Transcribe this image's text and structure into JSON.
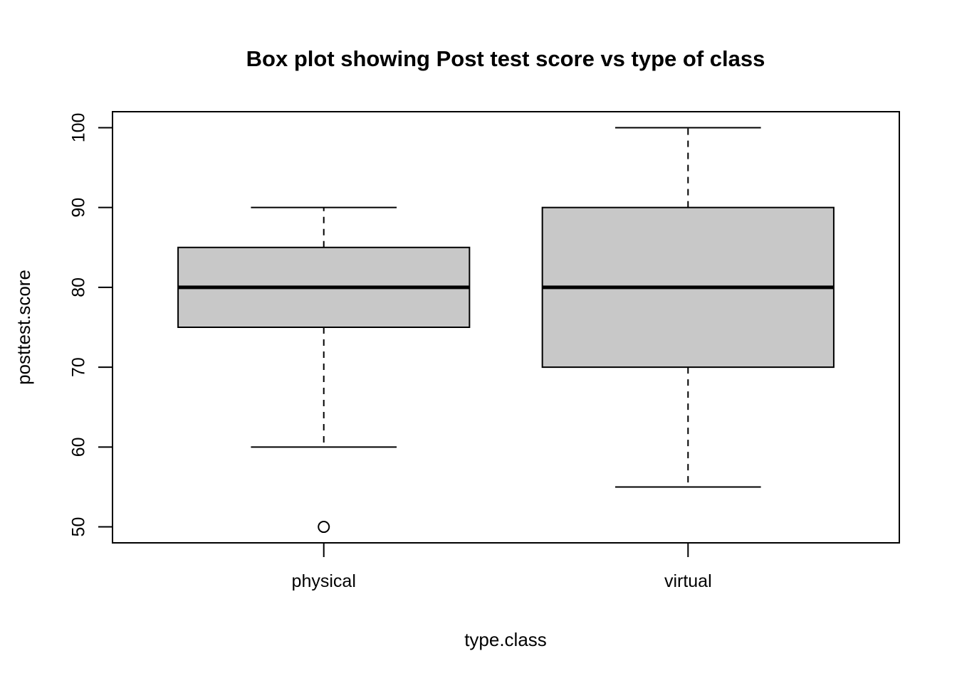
{
  "chart_data": {
    "type": "boxplot",
    "title": "Box plot showing Post test score vs type of class",
    "xlabel": "type.class",
    "ylabel": "posttest.score",
    "categories": [
      "physical",
      "virtual"
    ],
    "y_ticks": [
      50,
      60,
      70,
      80,
      90,
      100
    ],
    "ylim": [
      48,
      102
    ],
    "grid": false,
    "legend": false,
    "series": [
      {
        "name": "physical",
        "lower_whisker": 60,
        "q1": 75,
        "median": 80,
        "q3": 85,
        "upper_whisker": 90,
        "outliers": [
          50
        ]
      },
      {
        "name": "virtual",
        "lower_whisker": 55,
        "q1": 70,
        "median": 80,
        "q3": 90,
        "upper_whisker": 100,
        "outliers": []
      }
    ],
    "colors": {
      "box_fill": "#c8c8c8",
      "line": "#000000",
      "background": "#ffffff"
    }
  }
}
